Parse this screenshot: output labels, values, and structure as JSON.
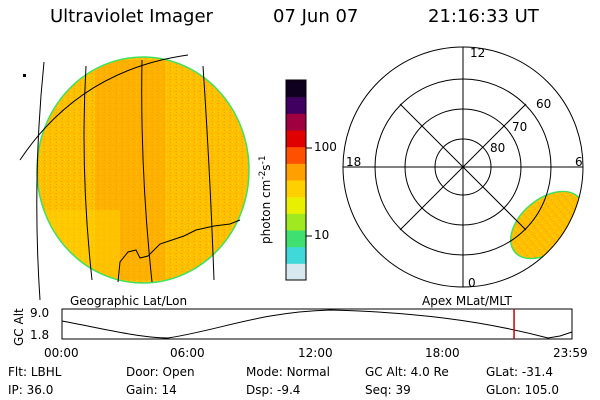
{
  "header": {
    "title": "Ultraviolet Imager",
    "date": "07 Jun 07",
    "time": "21:16:33 UT"
  },
  "geo_panel": {
    "label": "Geographic Lat/Lon"
  },
  "apex_panel": {
    "label": "Apex MLat/MLT",
    "lat_labels": [
      "60",
      "70",
      "80"
    ],
    "mlt_labels": [
      "12",
      "18",
      "6",
      "0"
    ]
  },
  "colorbar": {
    "unit_label": "photon cm",
    "unit_sup1": "-2",
    "unit_s": "s",
    "unit_sup2": "-1",
    "tick_labels": [
      "100",
      "10"
    ],
    "colors": [
      "#d8e8f0",
      "#40d8d8",
      "#40e070",
      "#a0e820",
      "#e8f000",
      "#ffd000",
      "#ffa000",
      "#ff5000",
      "#e00000",
      "#a00040",
      "#400060",
      "#100020"
    ]
  },
  "altitude_strip": {
    "ylabel": "GC Alt",
    "y_labels": [
      "9.0",
      "1.8"
    ],
    "time_labels": [
      "00:00",
      "06:00",
      "12:00",
      "18:00",
      "23:59"
    ],
    "current_time_fraction": 0.8864
  },
  "info": {
    "flt_label": "Flt:",
    "flt_value": "LBHL",
    "ip_label": "IP:",
    "ip_value": "36.0",
    "door_label": "Door:",
    "door_value": "Open",
    "gain_label": "Gain:",
    "gain_value": "14",
    "mode_label": "Mode:",
    "mode_value": "Normal",
    "dsp_label": "Dsp:",
    "dsp_value": "-9.4",
    "gcalt_label": "GC Alt:",
    "gcalt_value": "4.0 Re",
    "seq_label": "Seq:",
    "seq_value": "39",
    "glat_label": "GLat:",
    "glat_value": "-31.4",
    "glon_label": "GLon:",
    "glon_value": "105.0"
  }
}
